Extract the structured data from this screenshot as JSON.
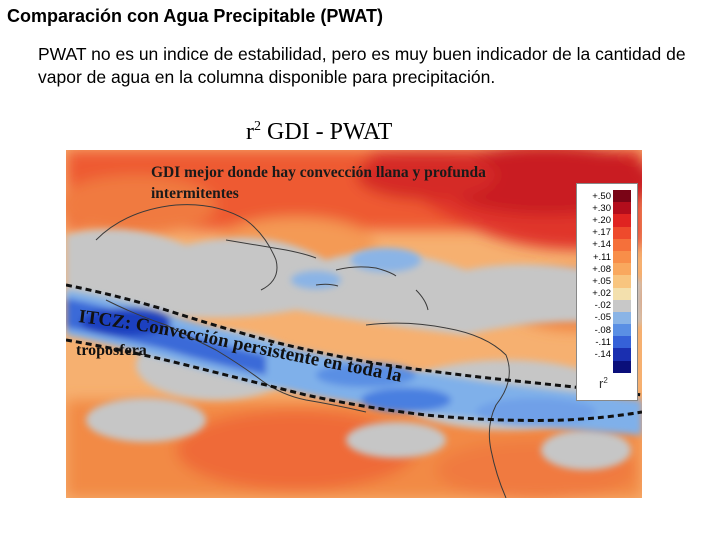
{
  "slide": {
    "title": "Comparación con Agua Precipitable (PWAT)",
    "description": "PWAT no es un indice de estabilidad, pero es muy buen indicador de la cantidad de vapor de agua en la columna disponible  para precipitación."
  },
  "map": {
    "title_r": "r",
    "title_exp": "2",
    "title_rest": " GDI - PWAT",
    "annotation_gdi": "GDI mejor donde hay convección llana y profunda intermitentes",
    "annotation_itcz_1": "ITCZ: Convección persistente en toda la",
    "annotation_itcz_2": "troposfera",
    "legend": {
      "unit_base": "r",
      "unit_exp": "2",
      "entries": [
        {
          "label": "+.50",
          "color": "#7a0416"
        },
        {
          "label": "+.30",
          "color": "#b30d1c"
        },
        {
          "label": "+.20",
          "color": "#e02321"
        },
        {
          "label": "+.17",
          "color": "#ee4a2c"
        },
        {
          "label": "+.14",
          "color": "#f5703a"
        },
        {
          "label": "+.11",
          "color": "#f88e49"
        },
        {
          "label": "+.08",
          "color": "#f9a85e"
        },
        {
          "label": "+.05",
          "color": "#f8c57f"
        },
        {
          "label": "+.02",
          "color": "#f3e0ad"
        },
        {
          "label": "-.02",
          "color": "#c8c8c8"
        },
        {
          "label": "-.05",
          "color": "#8ab4e6"
        },
        {
          "label": "-.08",
          "color": "#5a8fe4"
        },
        {
          "label": "-.11",
          "color": "#3561d8"
        },
        {
          "label": "-.14",
          "color": "#1a2fb0"
        },
        {
          "label": "",
          "color": "#0a0f7a"
        }
      ]
    }
  }
}
